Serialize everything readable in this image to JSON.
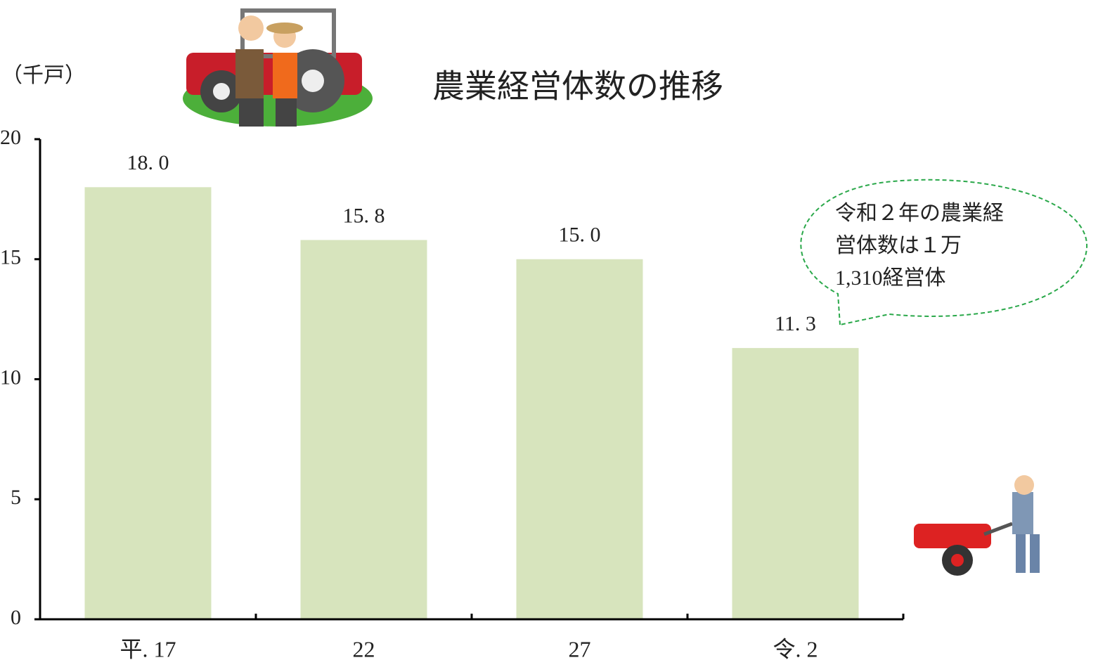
{
  "chart_data": {
    "type": "bar",
    "title": "農業経営体数の推移",
    "y_unit": "（千戸）",
    "categories": [
      "平. 17",
      "22",
      "27",
      "令. 2"
    ],
    "values": [
      18.0,
      15.8,
      15.0,
      11.3
    ],
    "value_labels": [
      "18. 0",
      "15. 8",
      "15. 0",
      "11. 3"
    ],
    "color": "#d7e4bd",
    "ylim": [
      0,
      20
    ],
    "yticks": [
      0,
      5,
      10,
      15,
      20
    ],
    "annotation": [
      "令和２年の農業経",
      "営体数は１万",
      "1,310経営体"
    ]
  }
}
